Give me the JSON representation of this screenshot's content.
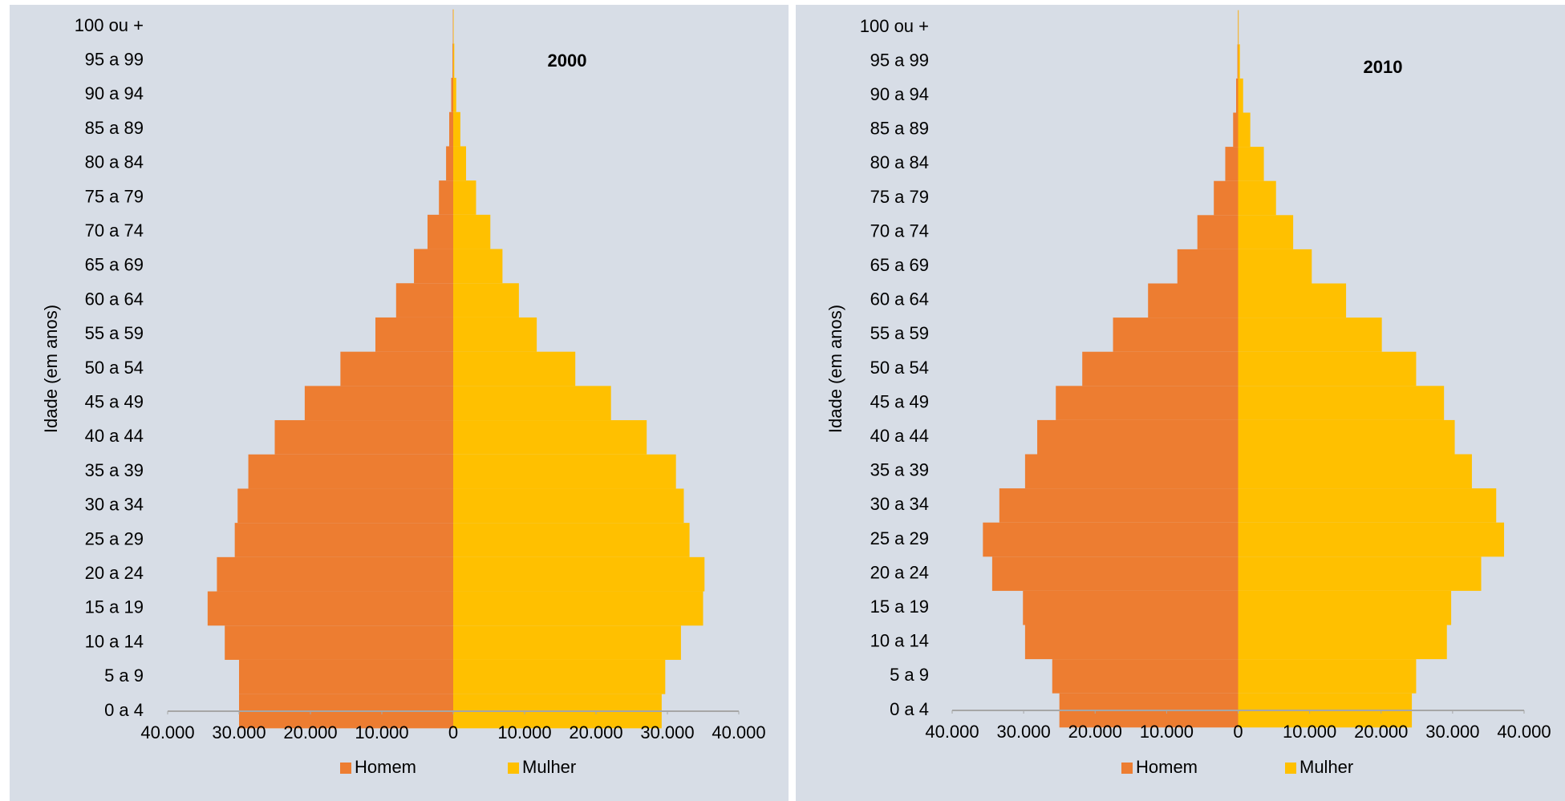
{
  "chart_data": [
    {
      "type": "bar",
      "orientation": "horizontal",
      "title": "2000",
      "y_label": "Idade (em anos)",
      "categories": [
        "0 a 4",
        "5 a 9",
        "10 a 14",
        "15 a 19",
        "20 a 24",
        "25 a 29",
        "30 a 34",
        "35 a 39",
        "40 a 44",
        "45 a 49",
        "50 a 54",
        "55 a 59",
        "60 a 64",
        "65 a 69",
        "70 a 74",
        "75 a 79",
        "80 a 84",
        "85 a 89",
        "90 a 94",
        "95 a 99",
        "100 ou +"
      ],
      "series": [
        {
          "name": "Homem",
          "color": "#ed7d31",
          "values": [
            -30000,
            -30000,
            -32000,
            -34400,
            -33100,
            -30600,
            -30200,
            -28700,
            -25000,
            -20800,
            -15800,
            -10900,
            -8000,
            -5500,
            -3600,
            -2000,
            -1000,
            -560,
            -280,
            -100,
            -50
          ]
        },
        {
          "name": "Mulher",
          "color": "#ffc000",
          "values": [
            29200,
            29700,
            31900,
            35000,
            35200,
            33100,
            32300,
            31200,
            27100,
            22100,
            17100,
            11700,
            9200,
            6900,
            5200,
            3200,
            1800,
            1000,
            420,
            150,
            60
          ]
        }
      ],
      "xlim": [
        -40000,
        40000
      ],
      "xticks": [
        {
          "value": -40000,
          "label": "40.000"
        },
        {
          "value": -30000,
          "label": "30.000"
        },
        {
          "value": -20000,
          "label": "20.000"
        },
        {
          "value": -10000,
          "label": "10.000"
        },
        0,
        {
          "value": 10000,
          "label": "10.000"
        },
        {
          "value": 20000,
          "label": "20.000"
        },
        {
          "value": 30000,
          "label": "30.000"
        },
        {
          "value": 40000,
          "label": "40.000"
        }
      ],
      "legend": "bottom"
    },
    {
      "type": "bar",
      "orientation": "horizontal",
      "title": "2010",
      "y_label": "Idade (em anos)",
      "categories": [
        "0 a 4",
        "5 a 9",
        "10 a 14",
        "15 a 19",
        "20 a 24",
        "25 a 29",
        "30 a 34",
        "35 a 39",
        "40 a 44",
        "45 a 49",
        "50 a 54",
        "55 a 59",
        "60 a 64",
        "65 a 69",
        "70 a 74",
        "75 a 79",
        "80 a 84",
        "85 a 89",
        "90 a 94",
        "95 a 99",
        "100 ou +"
      ],
      "series": [
        {
          "name": "Homem",
          "color": "#ed7d31",
          "values": [
            -25000,
            -26000,
            -29800,
            -30100,
            -34400,
            -35700,
            -33400,
            -29800,
            -28100,
            -25500,
            -21800,
            -17500,
            -12600,
            -8500,
            -5700,
            -3400,
            -1800,
            -700,
            -280,
            -100,
            -30
          ]
        },
        {
          "name": "Mulher",
          "color": "#ffc000",
          "values": [
            24300,
            24900,
            29200,
            29800,
            34000,
            37200,
            36100,
            32700,
            30300,
            28800,
            24900,
            20100,
            15100,
            10300,
            7700,
            5300,
            3600,
            1700,
            700,
            250,
            80
          ]
        }
      ],
      "xlim": [
        -40000,
        40000
      ],
      "xticks": [
        {
          "value": -40000,
          "label": "40.000"
        },
        {
          "value": -30000,
          "label": "30.000"
        },
        {
          "value": -20000,
          "label": "20.000"
        },
        {
          "value": -10000,
          "label": "10.000"
        },
        0,
        {
          "value": 10000,
          "label": "10.000"
        },
        {
          "value": 20000,
          "label": "20.000"
        },
        {
          "value": 30000,
          "label": "30.000"
        },
        {
          "value": 40000,
          "label": "40.000"
        }
      ],
      "legend": "bottom"
    }
  ]
}
